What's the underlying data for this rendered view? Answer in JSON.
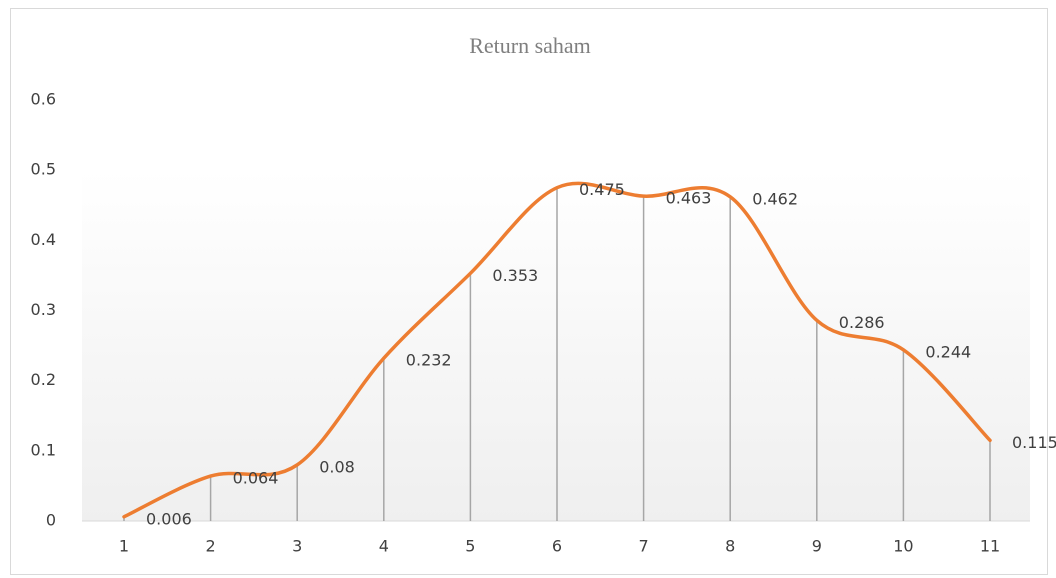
{
  "chart_data": {
    "type": "line",
    "title": "Return saham",
    "categories": [
      "1",
      "2",
      "3",
      "4",
      "5",
      "6",
      "7",
      "8",
      "9",
      "10",
      "11"
    ],
    "series": [
      {
        "name": "Return saham",
        "color": "#ed7d31",
        "values": [
          0.006,
          0.064,
          0.08,
          0.232,
          0.353,
          0.475,
          0.463,
          0.462,
          0.286,
          0.244,
          0.115
        ]
      }
    ],
    "ylim": [
      0,
      0.6
    ],
    "yticks": [
      0,
      0.1,
      0.2,
      0.3,
      0.4,
      0.5,
      0.6
    ],
    "grid": false,
    "drop_lines": true,
    "smooth": true
  }
}
